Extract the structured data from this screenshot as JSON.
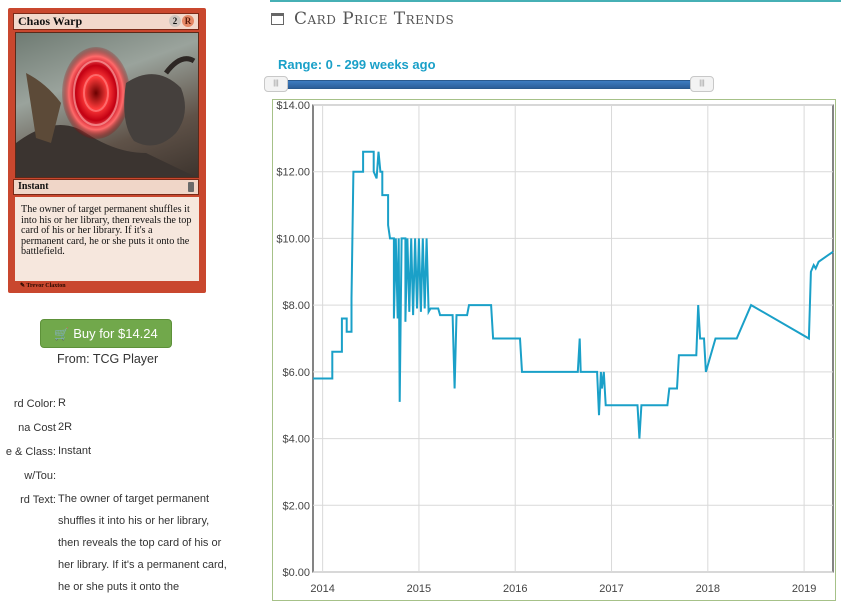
{
  "card": {
    "name": "Chaos Warp",
    "mana_symbols": [
      "2",
      "R"
    ],
    "type_line": "Instant",
    "rules_text": "The owner of target permanent shuffles it into his or her library, then reveals the top card of his or her library. If it's a permanent card, he or she puts it onto the battlefield.",
    "artist": "Trevor Claxton"
  },
  "buy": {
    "label": "Buy for $14.24",
    "from": "From: TCG Player"
  },
  "info": [
    {
      "label": "rd Color:",
      "value": "R"
    },
    {
      "label": "na Cost",
      "value": "2R"
    },
    {
      "label": "e & Class:",
      "value": "Instant"
    },
    {
      "label": "w/Tou:",
      "value": ""
    },
    {
      "label": "rd Text:",
      "value": "The owner of target permanent shuffles it into his or her library, then reveals the top card of his or her library. If it's a permanent card, he or she puts it onto the"
    }
  ],
  "trends": {
    "title": "Card Price Trends",
    "range_label": "Range: 0 - 299 weeks ago",
    "accent_color": "#46b0b5"
  },
  "chart_data": {
    "type": "line",
    "title": "",
    "xlabel": "",
    "ylabel": "",
    "x_ticks": [
      "2014",
      "2015",
      "2016",
      "2017",
      "2018",
      "2019"
    ],
    "y_ticks": [
      "$0.00",
      "$2.00",
      "$4.00",
      "$6.00",
      "$8.00",
      "$10.00",
      "$12.00",
      "$14.00"
    ],
    "xlim": [
      2013.9,
      2019.3
    ],
    "ylim": [
      0,
      14
    ],
    "grid": true,
    "line_color": "#1aa0c8",
    "series": [
      {
        "values": [
          [
            2013.9,
            5.8
          ],
          [
            2014.1,
            5.8
          ],
          [
            2014.1,
            6.6
          ],
          [
            2014.2,
            6.6
          ],
          [
            2014.2,
            7.6
          ],
          [
            2014.25,
            7.6
          ],
          [
            2014.25,
            7.2
          ],
          [
            2014.3,
            7.2
          ],
          [
            2014.3,
            8.2
          ],
          [
            2014.32,
            12.0
          ],
          [
            2014.42,
            12.0
          ],
          [
            2014.42,
            12.6
          ],
          [
            2014.53,
            12.6
          ],
          [
            2014.53,
            12.0
          ],
          [
            2014.56,
            11.8
          ],
          [
            2014.58,
            12.6
          ],
          [
            2014.6,
            12.0
          ],
          [
            2014.62,
            12.0
          ],
          [
            2014.62,
            11.3
          ],
          [
            2014.68,
            11.3
          ],
          [
            2014.68,
            10.4
          ],
          [
            2014.7,
            10.0
          ],
          [
            2014.74,
            10.0
          ],
          [
            2014.74,
            7.6
          ],
          [
            2014.76,
            10.0
          ],
          [
            2014.78,
            7.6
          ],
          [
            2014.79,
            10.0
          ],
          [
            2014.8,
            5.1
          ],
          [
            2014.82,
            10.0
          ],
          [
            2014.86,
            10.0
          ],
          [
            2014.86,
            7.5
          ],
          [
            2014.88,
            10.0
          ],
          [
            2014.9,
            7.8
          ],
          [
            2014.92,
            10.0
          ],
          [
            2014.94,
            7.7
          ],
          [
            2014.96,
            10.0
          ],
          [
            2014.98,
            7.9
          ],
          [
            2015.0,
            10.0
          ],
          [
            2015.02,
            7.8
          ],
          [
            2015.04,
            10.0
          ],
          [
            2015.06,
            7.9
          ],
          [
            2015.08,
            10.0
          ],
          [
            2015.1,
            7.8
          ],
          [
            2015.12,
            7.9
          ],
          [
            2015.2,
            7.9
          ],
          [
            2015.22,
            7.7
          ],
          [
            2015.35,
            7.7
          ],
          [
            2015.37,
            5.5
          ],
          [
            2015.39,
            7.7
          ],
          [
            2015.5,
            7.7
          ],
          [
            2015.52,
            8.0
          ],
          [
            2015.75,
            8.0
          ],
          [
            2015.77,
            7.0
          ],
          [
            2016.05,
            7.0
          ],
          [
            2016.07,
            6.0
          ],
          [
            2016.65,
            6.0
          ],
          [
            2016.67,
            7.0
          ],
          [
            2016.68,
            6.0
          ],
          [
            2016.85,
            6.0
          ],
          [
            2016.87,
            4.7
          ],
          [
            2016.89,
            6.0
          ],
          [
            2016.9,
            5.5
          ],
          [
            2016.92,
            6.0
          ],
          [
            2016.94,
            5.0
          ],
          [
            2017.27,
            5.0
          ],
          [
            2017.29,
            4.0
          ],
          [
            2017.31,
            5.0
          ],
          [
            2017.58,
            5.0
          ],
          [
            2017.6,
            5.5
          ],
          [
            2017.68,
            5.5
          ],
          [
            2017.7,
            6.5
          ],
          [
            2017.88,
            6.5
          ],
          [
            2017.9,
            8.0
          ],
          [
            2017.92,
            7.0
          ],
          [
            2017.96,
            7.0
          ],
          [
            2017.98,
            6.0
          ],
          [
            2018.08,
            7.0
          ],
          [
            2018.3,
            7.0
          ],
          [
            2018.45,
            8.0
          ],
          [
            2019.05,
            7.0
          ],
          [
            2019.07,
            9.0
          ],
          [
            2019.1,
            9.2
          ],
          [
            2019.12,
            9.1
          ],
          [
            2019.15,
            9.3
          ],
          [
            2019.2,
            9.4
          ],
          [
            2019.25,
            9.5
          ],
          [
            2019.3,
            9.6
          ]
        ]
      }
    ]
  }
}
